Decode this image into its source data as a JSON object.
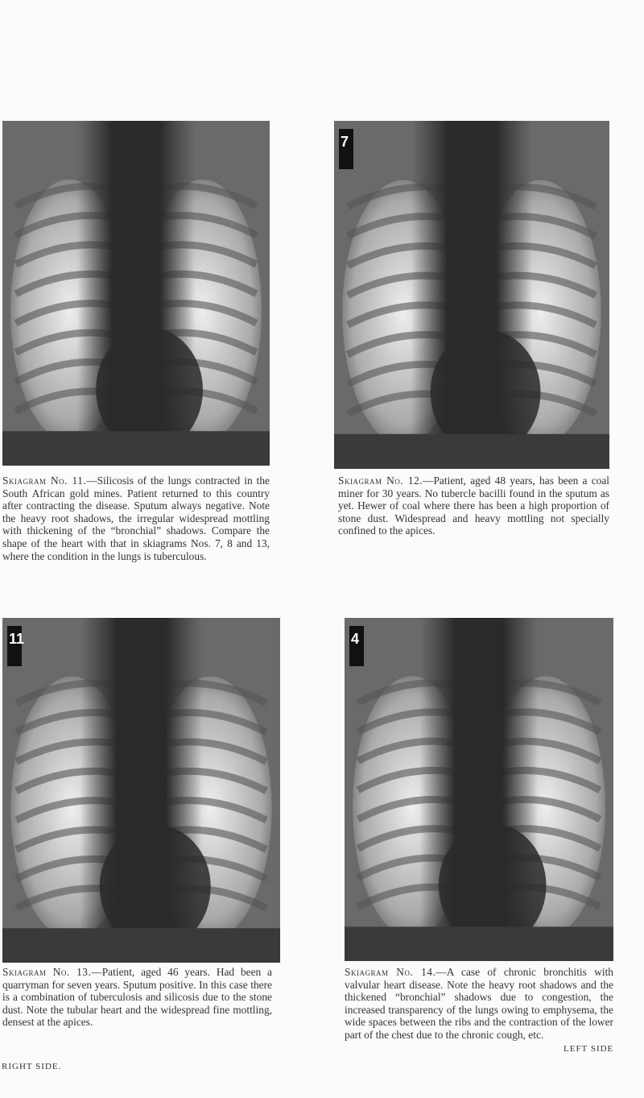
{
  "figures": [
    {
      "heading": "Skiagram No. 11.",
      "text": "—Silicosis of the lungs contracted in the South African gold mines. Patient returned to this country after contracting the disease. Sputum always negative. Note the heavy root shadows, the irregular widespread mottling with thickening of the “bronchial” shadows. Compare the shape of the heart with that in skiagrams Nos. 7, 8 and 13, where the condition in the lungs is tuberculous."
    },
    {
      "marker": "7",
      "heading": "Skiagram No. 12.",
      "text": "—Patient, aged 48 years, has been a coal miner for 30 years. No tubercle bacilli found in the sputum as yet. Hewer of coal where there has been a high proportion of stone dust. Widespread and heavy mottling not specially confined to the apices."
    },
    {
      "marker": "11",
      "heading": "Skiagram No. 13.",
      "text": "—Patient, aged 46 years. Had been a quarryman for seven years. Sputum positive. In this case there is a combination of tuberculosis and silicosis due to the stone dust. Note the tubular heart and the widespread fine mottling, densest at the apices."
    },
    {
      "marker": "4",
      "heading": "Skiagram No. 14.",
      "text": "—A case of chronic bronchitis with valvular heart disease. Note the heavy root shadows and the thickened “bronchial” shadows due to congestion, the increased transparency of the lungs owing to emphysema, the wide spaces between the ribs and the contraction of the lower part of the chest due to the chronic cough, etc."
    }
  ],
  "footer": {
    "left": "RIGHT SIDE.",
    "right": "LEFT SIDE"
  }
}
